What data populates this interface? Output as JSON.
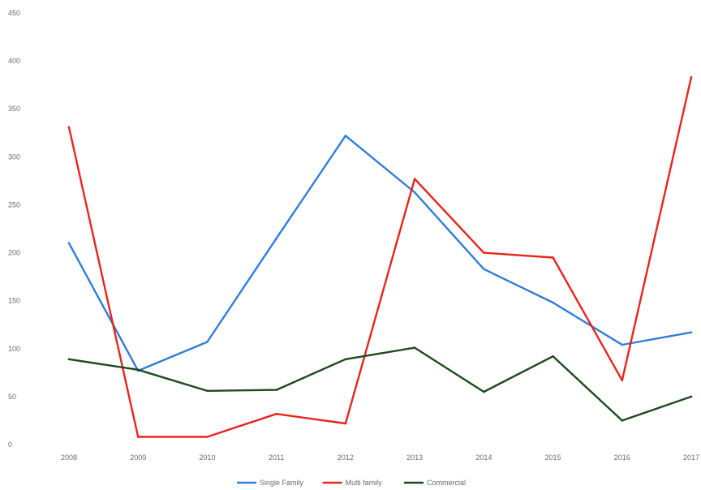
{
  "chart_data": {
    "type": "line",
    "title": "",
    "xlabel": "",
    "ylabel": "",
    "categories": [
      "2008",
      "2009",
      "2010",
      "2011",
      "2012",
      "2013",
      "2014",
      "2015",
      "2016",
      "2017"
    ],
    "ylim": [
      0,
      450
    ],
    "yticks": [
      0,
      50,
      100,
      150,
      200,
      250,
      300,
      350,
      400,
      450
    ],
    "grid": false,
    "legend_position": "bottom",
    "series": [
      {
        "name": "Single Family",
        "color": "#2f7ed8",
        "values": [
          210,
          77,
          107,
          215,
          322,
          263,
          183,
          148,
          104,
          117
        ]
      },
      {
        "name": "Multi family",
        "color": "#e8241c",
        "values": [
          331,
          8,
          8,
          32,
          22,
          277,
          200,
          195,
          67,
          383
        ]
      },
      {
        "name": "Commercial",
        "color": "#1d4a1c",
        "values": [
          89,
          78,
          56,
          57,
          89,
          101,
          55,
          92,
          25,
          50
        ]
      }
    ]
  }
}
